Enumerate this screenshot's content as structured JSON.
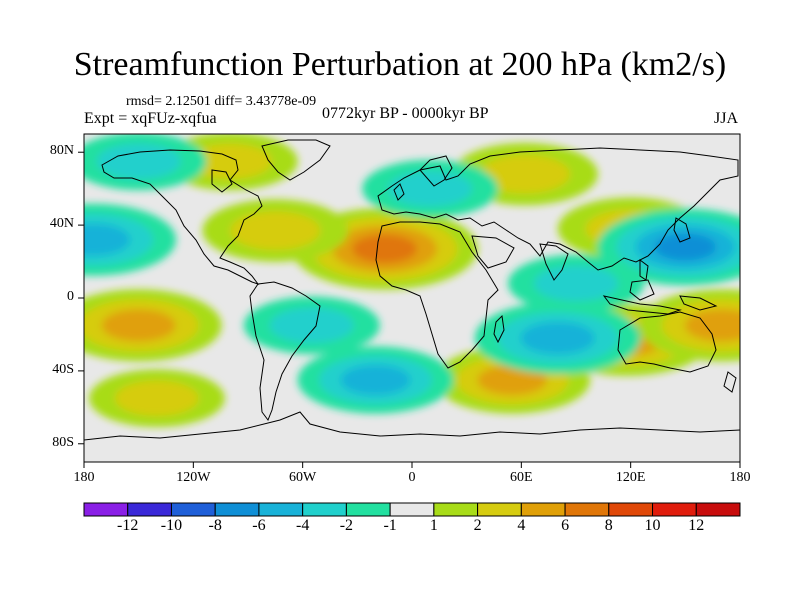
{
  "title": "Streamfunction Perturbation at 200 hPa (km2/s)",
  "stats": "rmsd= 2.12501 diff= 3.43778e-09",
  "experiment": "Expt = xqFUz-xqfua",
  "period": "0772kyr BP - 0000kyr BP",
  "season": "JJA",
  "lat_labels": [
    "80N",
    "40N",
    "0",
    "40S",
    "80S"
  ],
  "lon_labels": [
    "180",
    "120W",
    "60W",
    "0",
    "60E",
    "120E",
    "180"
  ],
  "colorbar": {
    "labels": [
      "-12",
      "-10",
      "-8",
      "-6",
      "-4",
      "-2",
      "-1",
      "1",
      "2",
      "4",
      "6",
      "8",
      "10",
      "12"
    ],
    "colors": [
      "#8a1fe6",
      "#3a28d8",
      "#1f5fd8",
      "#0f8fd6",
      "#18b2d8",
      "#20d0cc",
      "#22e0a0",
      "#e8e8e8",
      "#a8dc18",
      "#d6cc10",
      "#e0a008",
      "#e07608",
      "#e04808",
      "#e01c0c",
      "#c80c0c"
    ]
  },
  "chart_data": {
    "type": "contour-map",
    "variable": "Streamfunction Perturbation at 200 hPa (km2/s)",
    "projection": "cylindrical equidistant",
    "lon_range": [
      -180,
      180
    ],
    "lat_range": [
      -90,
      90
    ],
    "levels": [
      -12,
      -10,
      -8,
      -6,
      -4,
      -2,
      -1,
      1,
      2,
      4,
      6,
      8,
      10,
      12
    ],
    "features": [
      {
        "lon": -15,
        "lat": 27,
        "value": 7,
        "sign": "positive"
      },
      {
        "lon": -75,
        "lat": 37,
        "value": 3,
        "sign": "positive"
      },
      {
        "lon": 62,
        "lat": 68,
        "value": 3,
        "sign": "positive"
      },
      {
        "lon": 118,
        "lat": -23,
        "value": 5,
        "sign": "positive"
      },
      {
        "lon": 170,
        "lat": -15,
        "value": 5,
        "sign": "positive"
      },
      {
        "lon": -150,
        "lat": -15,
        "value": 5,
        "sign": "positive"
      },
      {
        "lon": 55,
        "lat": -45,
        "value": 4,
        "sign": "positive"
      },
      {
        "lon": -140,
        "lat": -55,
        "value": 2,
        "sign": "positive"
      },
      {
        "lon": 120,
        "lat": 38,
        "value": 3,
        "sign": "positive"
      },
      {
        "lon": -100,
        "lat": 75,
        "value": 2,
        "sign": "positive"
      },
      {
        "lon": 150,
        "lat": 28,
        "value": -6,
        "sign": "negative"
      },
      {
        "lon": -175,
        "lat": 32,
        "value": -5,
        "sign": "negative"
      },
      {
        "lon": 80,
        "lat": -22,
        "value": -5,
        "sign": "negative"
      },
      {
        "lon": -20,
        "lat": -45,
        "value": -4,
        "sign": "negative"
      },
      {
        "lon": -55,
        "lat": -15,
        "value": -2,
        "sign": "negative"
      },
      {
        "lon": 10,
        "lat": 60,
        "value": -2,
        "sign": "negative"
      },
      {
        "lon": 90,
        "lat": 8,
        "value": -2,
        "sign": "negative"
      },
      {
        "lon": -150,
        "lat": 75,
        "value": -2,
        "sign": "negative"
      }
    ]
  }
}
